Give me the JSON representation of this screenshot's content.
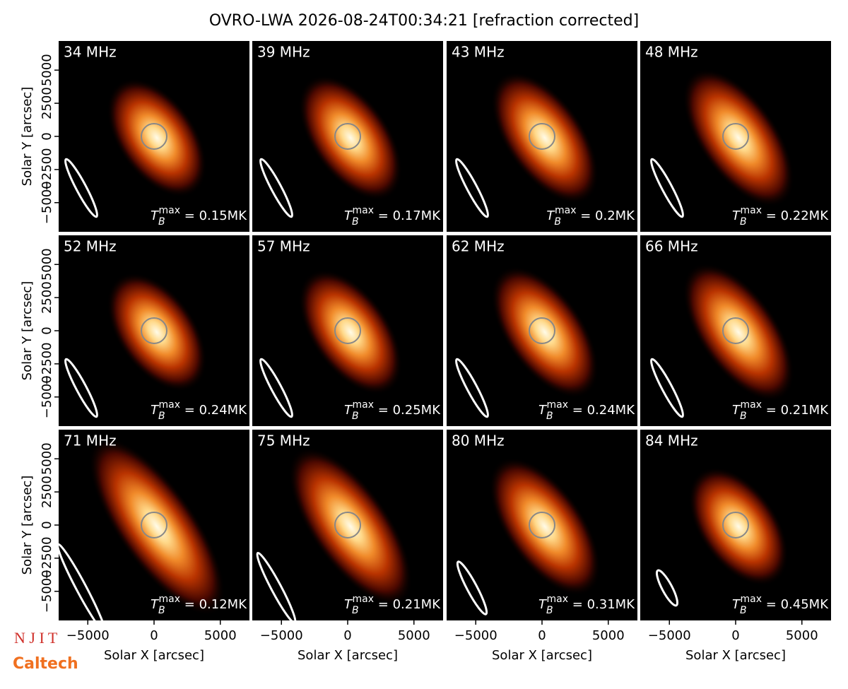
{
  "figure": {
    "title": "OVRO-LWA 2026-08-24T00:34:21 [refraction corrected]",
    "logos": [
      "N J I T",
      "Caltech"
    ]
  },
  "chart_data": [
    {
      "type": "image",
      "title": "34 MHz",
      "annotation": {
        "symbol": "T",
        "subscript": "B",
        "superscript": "max",
        "text": " = 0.15MK"
      },
      "xlim": [
        -7200,
        7200
      ],
      "ylim": [
        -7200,
        7200
      ],
      "ylabel": "Solar Y [arcsec]",
      "yticks": [
        {
          "value": -5000,
          "label": "−5000"
        },
        {
          "value": -2500,
          "label": "−2500"
        },
        0,
        2500,
        5000
      ]
    },
    {
      "type": "image",
      "title": "39 MHz",
      "annotation": {
        "symbol": "T",
        "subscript": "B",
        "superscript": "max",
        "text": " = 0.17MK"
      },
      "xlim": [
        -7200,
        7200
      ],
      "ylim": [
        -7200,
        7200
      ]
    },
    {
      "type": "image",
      "title": "43 MHz",
      "annotation": {
        "symbol": "T",
        "subscript": "B",
        "superscript": "max",
        "text": " = 0.2MK"
      },
      "xlim": [
        -7200,
        7200
      ],
      "ylim": [
        -7200,
        7200
      ]
    },
    {
      "type": "image",
      "title": "48 MHz",
      "annotation": {
        "symbol": "T",
        "subscript": "B",
        "superscript": "max",
        "text": " = 0.22MK"
      },
      "xlim": [
        -7200,
        7200
      ],
      "ylim": [
        -7200,
        7200
      ]
    },
    {
      "type": "image",
      "title": "52 MHz",
      "annotation": {
        "symbol": "T",
        "subscript": "B",
        "superscript": "max",
        "text": " = 0.24MK"
      },
      "xlim": [
        -7200,
        7200
      ],
      "ylim": [
        -7200,
        7200
      ],
      "ylabel": "Solar Y [arcsec]",
      "yticks": [
        {
          "value": -5000,
          "label": "−5000"
        },
        {
          "value": -2500,
          "label": "−2500"
        },
        0,
        2500,
        5000
      ]
    },
    {
      "type": "image",
      "title": "57 MHz",
      "annotation": {
        "symbol": "T",
        "subscript": "B",
        "superscript": "max",
        "text": " = 0.25MK"
      },
      "xlim": [
        -7200,
        7200
      ],
      "ylim": [
        -7200,
        7200
      ]
    },
    {
      "type": "image",
      "title": "62 MHz",
      "annotation": {
        "symbol": "T",
        "subscript": "B",
        "superscript": "max",
        "text": " = 0.24MK"
      },
      "xlim": [
        -7200,
        7200
      ],
      "ylim": [
        -7200,
        7200
      ]
    },
    {
      "type": "image",
      "title": "66 MHz",
      "annotation": {
        "symbol": "T",
        "subscript": "B",
        "superscript": "max",
        "text": " = 0.21MK"
      },
      "xlim": [
        -7200,
        7200
      ],
      "ylim": [
        -7200,
        7200
      ]
    },
    {
      "type": "image",
      "title": "71 MHz",
      "annotation": {
        "symbol": "T",
        "subscript": "B",
        "superscript": "max",
        "text": " = 0.12MK"
      },
      "xlim": [
        -7200,
        7200
      ],
      "ylim": [
        -7200,
        7200
      ],
      "ylabel": "Solar Y [arcsec]",
      "yticks": [
        {
          "value": -5000,
          "label": "−5000"
        },
        {
          "value": -2500,
          "label": "−2500"
        },
        0,
        2500,
        5000
      ],
      "xlabel": "Solar X [arcsec]",
      "xticks": [
        {
          "value": -5000,
          "label": "−5000"
        },
        0,
        5000
      ]
    },
    {
      "type": "image",
      "title": "75 MHz",
      "annotation": {
        "symbol": "T",
        "subscript": "B",
        "superscript": "max",
        "text": " = 0.21MK"
      },
      "xlim": [
        -7200,
        7200
      ],
      "ylim": [
        -7200,
        7200
      ],
      "xlabel": "Solar X [arcsec]",
      "xticks": [
        {
          "value": -5000,
          "label": "−5000"
        },
        0,
        5000
      ]
    },
    {
      "type": "image",
      "title": "80 MHz",
      "annotation": {
        "symbol": "T",
        "subscript": "B",
        "superscript": "max",
        "text": " = 0.31MK"
      },
      "xlim": [
        -7200,
        7200
      ],
      "ylim": [
        -7200,
        7200
      ],
      "xlabel": "Solar X [arcsec]",
      "xticks": [
        {
          "value": -5000,
          "label": "−5000"
        },
        0,
        5000
      ]
    },
    {
      "type": "image",
      "title": "84 MHz",
      "annotation": {
        "symbol": "T",
        "subscript": "B",
        "superscript": "max",
        "text": " = 0.45MK"
      },
      "xlim": [
        -7200,
        7200
      ],
      "ylim": [
        -7200,
        7200
      ],
      "xlabel": "Solar X [arcsec]",
      "xticks": [
        {
          "value": -5000,
          "label": "−5000"
        },
        0,
        5000
      ]
    }
  ]
}
